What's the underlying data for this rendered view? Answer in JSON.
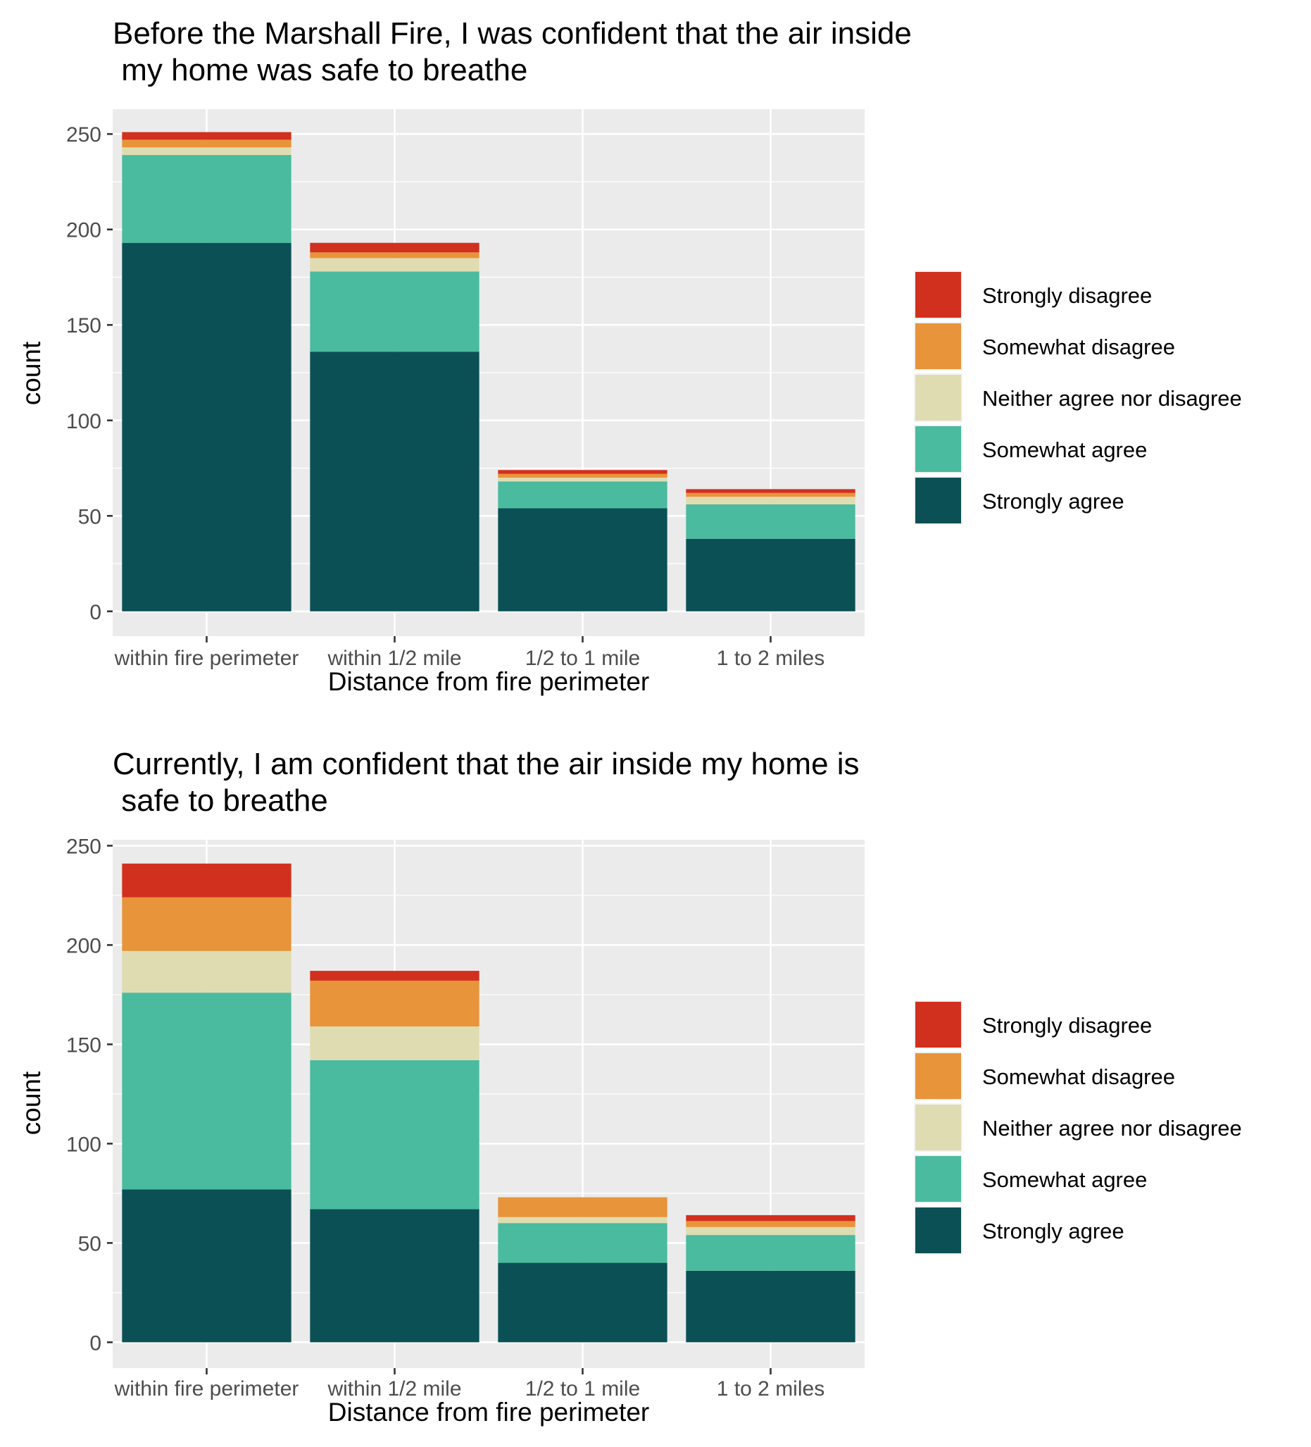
{
  "chart_data": [
    {
      "type": "bar",
      "stacked": true,
      "title": "Before the Marshall Fire, I was confident that the air inside\n my home was safe to breathe",
      "xlabel": "Distance from fire perimeter",
      "ylabel": "count",
      "ylim": [
        -13,
        263
      ],
      "yticks": [
        0,
        50,
        100,
        150,
        200,
        250
      ],
      "categories": [
        "within fire perimeter",
        "within 1/2 mile",
        "1/2 to 1 mile",
        "1 to 2 miles"
      ],
      "grid": true,
      "legend_position": "right",
      "series": [
        {
          "name": "Strongly agree",
          "color": "#0b5055",
          "values": [
            193,
            136,
            54,
            38
          ]
        },
        {
          "name": "Somewhat agree",
          "color": "#4abb9e",
          "values": [
            46,
            42,
            14,
            18
          ]
        },
        {
          "name": "Neither agree nor disagree",
          "color": "#dfdcb2",
          "values": [
            4,
            7,
            2,
            4
          ]
        },
        {
          "name": "Somewhat disagree",
          "color": "#e8943a",
          "values": [
            4,
            3,
            2,
            2
          ]
        },
        {
          "name": "Strongly disagree",
          "color": "#d2301e",
          "values": [
            4,
            5,
            2,
            2
          ]
        }
      ]
    },
    {
      "type": "bar",
      "stacked": true,
      "title": "Currently, I am confident that the air inside my home is\n safe to breathe",
      "xlabel": "Distance from fire perimeter",
      "ylabel": "count",
      "ylim": [
        -13,
        253
      ],
      "yticks": [
        0,
        50,
        100,
        150,
        200,
        250
      ],
      "categories": [
        "within fire perimeter",
        "within 1/2 mile",
        "1/2 to 1 mile",
        "1 to 2 miles"
      ],
      "grid": true,
      "legend_position": "right",
      "series": [
        {
          "name": "Strongly agree",
          "color": "#0b5055",
          "values": [
            77,
            67,
            40,
            36
          ]
        },
        {
          "name": "Somewhat agree",
          "color": "#4abb9e",
          "values": [
            99,
            75,
            20,
            18
          ]
        },
        {
          "name": "Neither agree nor disagree",
          "color": "#dfdcb2",
          "values": [
            21,
            17,
            3,
            4
          ]
        },
        {
          "name": "Somewhat disagree",
          "color": "#e8943a",
          "values": [
            27,
            23,
            10,
            3
          ]
        },
        {
          "name": "Strongly disagree",
          "color": "#d2301e",
          "values": [
            17,
            5,
            0,
            3
          ]
        }
      ]
    }
  ]
}
